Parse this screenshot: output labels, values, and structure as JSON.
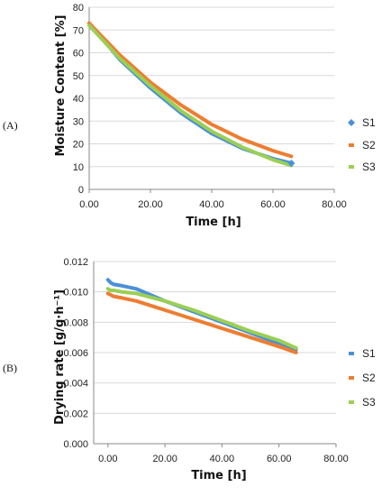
{
  "panel_labels": [
    "(A)",
    "(B)"
  ],
  "chart_data": [
    {
      "type": "line",
      "panel_label": "(A)",
      "xlabel": "Time [h]",
      "ylabel": "Moisture Content  [%]",
      "xlim": [
        0,
        80
      ],
      "ylim": [
        0,
        80
      ],
      "xticks": [
        "0.00",
        "20.00",
        "40.00",
        "60.00",
        "80.00"
      ],
      "yticks": [
        "0",
        "10",
        "20",
        "30",
        "40",
        "50",
        "60",
        "70",
        "80"
      ],
      "legend_position": "right",
      "grid": "horizontal",
      "series": [
        {
          "name": "S1",
          "color": "#4a90d9",
          "marker": "diamond",
          "x": [
            0,
            10,
            20,
            30,
            40,
            50,
            60,
            66
          ],
          "y": [
            73,
            57,
            44.5,
            33.5,
            24.5,
            18,
            13.5,
            11.5
          ]
        },
        {
          "name": "S2",
          "color": "#ed7d31",
          "marker": "none",
          "x": [
            0,
            10,
            20,
            30,
            40,
            50,
            60,
            66
          ],
          "y": [
            73,
            59,
            47,
            37,
            28.5,
            22,
            17,
            14.5
          ]
        },
        {
          "name": "S3",
          "color": "#9bcf53",
          "marker": "none",
          "x": [
            0,
            10,
            20,
            30,
            40,
            50,
            60,
            66
          ],
          "y": [
            72,
            57.5,
            45.5,
            34.5,
            25.5,
            18.5,
            13,
            10.5
          ]
        }
      ]
    },
    {
      "type": "line",
      "panel_label": "(B)",
      "xlabel": "Time [h]",
      "ylabel": "Drying rate  [g/g·h⁻¹]",
      "xlim": [
        -5,
        80
      ],
      "ylim": [
        0,
        0.012
      ],
      "xticks": [
        "0.00",
        "20.00",
        "40.00",
        "60.00",
        "80.00"
      ],
      "yticks": [
        "0.000",
        "0.002",
        "0.004",
        "0.006",
        "0.008",
        "0.010",
        "0.012"
      ],
      "legend_position": "right",
      "grid": "horizontal",
      "series": [
        {
          "name": "S1",
          "color": "#4a90d9",
          "marker": "none",
          "x": [
            0,
            1,
            2,
            5,
            10,
            20,
            30,
            40,
            50,
            60,
            66
          ],
          "y": [
            0.0108,
            0.0106,
            0.0105,
            0.0104,
            0.0102,
            0.0094,
            0.0087,
            0.008,
            0.0073,
            0.0066,
            0.0062
          ]
        },
        {
          "name": "S2",
          "color": "#ed7d31",
          "marker": "none",
          "x": [
            0,
            1,
            2,
            5,
            10,
            20,
            30,
            40,
            50,
            60,
            66
          ],
          "y": [
            0.0099,
            0.0098,
            0.0097,
            0.0096,
            0.0094,
            0.0088,
            0.0082,
            0.0076,
            0.007,
            0.0064,
            0.006
          ]
        },
        {
          "name": "S3",
          "color": "#9bcf53",
          "marker": "none",
          "x": [
            0,
            1,
            2,
            5,
            10,
            20,
            30,
            40,
            50,
            60,
            66
          ],
          "y": [
            0.0102,
            0.0101,
            0.0101,
            0.01,
            0.0099,
            0.0094,
            0.0088,
            0.0081,
            0.0074,
            0.0068,
            0.0063
          ]
        }
      ]
    }
  ]
}
